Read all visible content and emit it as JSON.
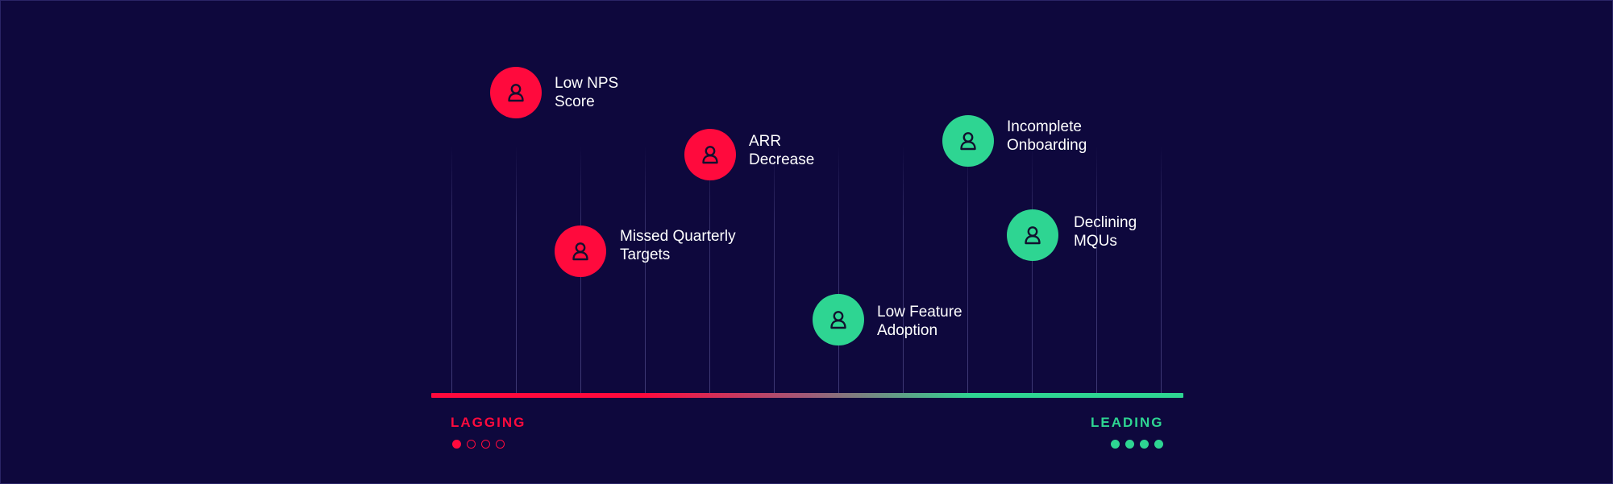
{
  "colors": {
    "background": "#0e083d",
    "lagging": "#ff0a3d",
    "leading": "#2ed592",
    "text": "#ffffff",
    "gridline": "#7873b9"
  },
  "scale": {
    "left_label": "LAGGING",
    "right_label": "LEADING",
    "left_dots": {
      "filled": 1,
      "total": 4
    },
    "right_dots": {
      "filled": 4,
      "total": 4
    }
  },
  "indicators": [
    {
      "id": "low-nps-score",
      "line1": "Low NPS",
      "line2": "Score",
      "type": "lagging",
      "icon": "user-icon"
    },
    {
      "id": "missed-quarterly-targets",
      "line1": "Missed Quarterly",
      "line2": "Targets",
      "type": "lagging",
      "icon": "user-icon"
    },
    {
      "id": "arr-decrease",
      "line1": "ARR",
      "line2": "Decrease",
      "type": "lagging",
      "icon": "user-icon"
    },
    {
      "id": "low-feature-adoption",
      "line1": "Low Feature",
      "line2": "Adoption",
      "type": "leading",
      "icon": "user-icon"
    },
    {
      "id": "incomplete-onboarding",
      "line1": "Incomplete",
      "line2": "Onboarding",
      "type": "leading",
      "icon": "user-icon"
    },
    {
      "id": "declining-mqus",
      "line1": "Declining",
      "line2": "MQUs",
      "type": "leading",
      "icon": "user-icon"
    }
  ]
}
